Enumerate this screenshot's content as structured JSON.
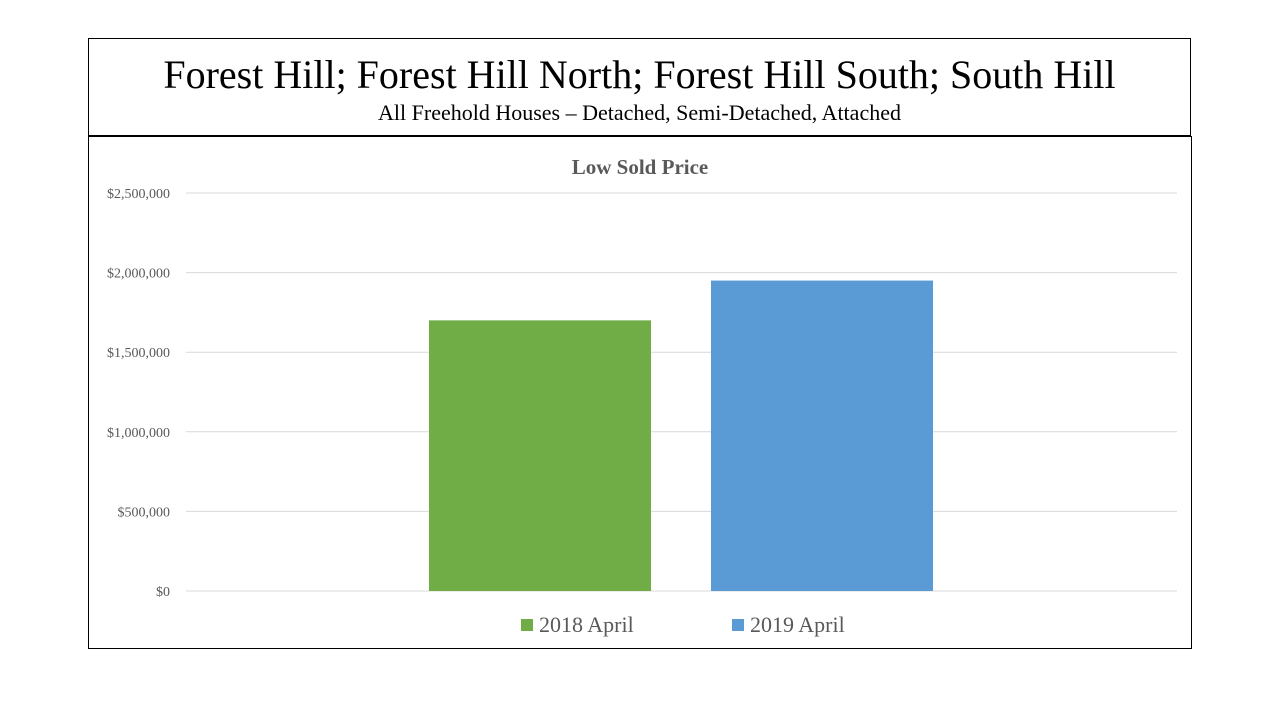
{
  "header": {
    "title": "Forest Hill; Forest Hill North; Forest Hill South; South Hill",
    "subtitle": "All Freehold Houses – Detached, Semi-Detached, Attached"
  },
  "chart_data": {
    "type": "bar",
    "title": "Low Sold Price",
    "xlabel": "",
    "ylabel": "",
    "ylim": [
      0,
      2500000
    ],
    "y_ticks": [
      0,
      500000,
      1000000,
      1500000,
      2000000,
      2500000
    ],
    "y_tick_labels": [
      "$0",
      "$500,000",
      "$1,000,000",
      "$1,500,000",
      "$2,000,000",
      "$2,500,000"
    ],
    "grid": true,
    "legend_position": "bottom",
    "categories": [
      ""
    ],
    "series": [
      {
        "name": "2018 April",
        "values": [
          1700000
        ],
        "color": "#70AD47"
      },
      {
        "name": "2019 April",
        "values": [
          1950000
        ],
        "color": "#5B9BD5"
      }
    ]
  }
}
